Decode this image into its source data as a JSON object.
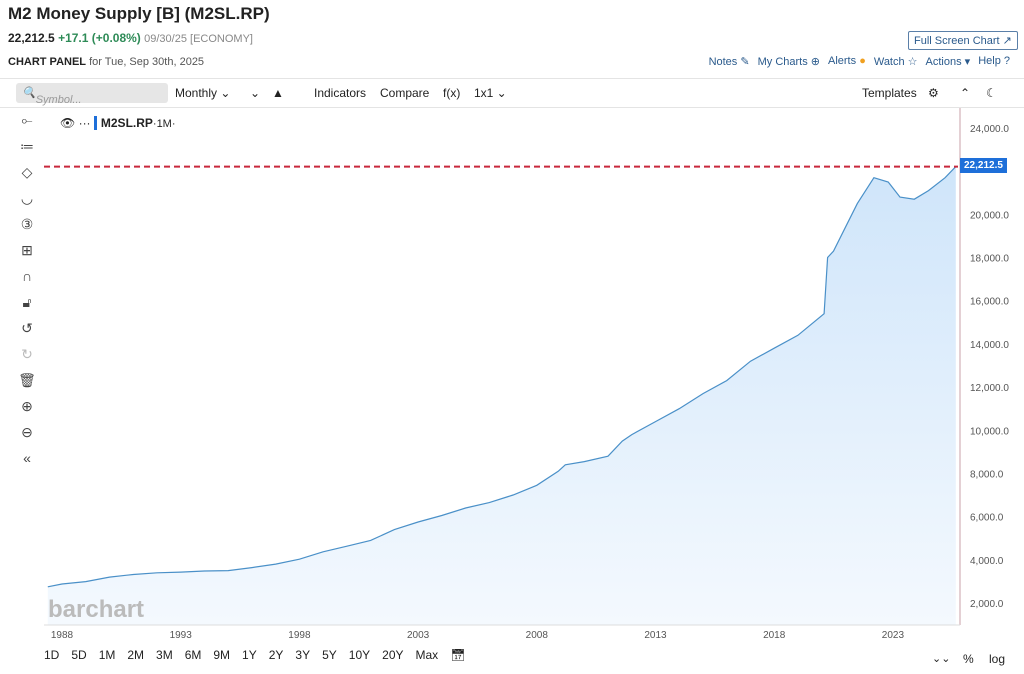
{
  "header": {
    "title": "M2 Money Supply [B] (M2SL.RP)",
    "last": "22,212.5",
    "change": "+17.1 (+0.08%)",
    "date": "09/30/25 [ECONOMY]",
    "panel_label": "CHART PANEL",
    "panel_date": "for Tue, Sep 30th, 2025",
    "fullscreen": "Full Screen Chart ↗"
  },
  "links": [
    "Notes",
    "My Charts",
    "Alerts",
    "Watch",
    "Actions ▾",
    "Help"
  ],
  "toolbar": {
    "search_placeholder": "Symbol...",
    "interval": "Monthly ⌄",
    "chart_type": "⌄",
    "indicators": "Indicators",
    "compare": "Compare",
    "fx": "f(x)",
    "layout": "1x1 ⌄",
    "templates": "Templates"
  },
  "legend": {
    "symbol": "M2SL.RP",
    "period": "·1M·"
  },
  "watermark": "barchart",
  "bottom": {
    "ranges": [
      "1D",
      "5D",
      "1M",
      "2M",
      "3M",
      "6M",
      "9M",
      "1Y",
      "2Y",
      "3Y",
      "5Y",
      "10Y",
      "20Y",
      "Max"
    ],
    "percent": "%",
    "log": "log"
  },
  "chart_data": {
    "type": "area",
    "title": "",
    "xlabel": "",
    "ylabel": "",
    "xticks": [
      "1988",
      "1993",
      "1998",
      "2003",
      "2008",
      "2013",
      "2018",
      "2023"
    ],
    "yticks": [
      "24,000.0",
      "20,000.0",
      "18,000.0",
      "16,000.0",
      "14,000.0",
      "12,000.0",
      "10,000.0",
      "8,000.0",
      "6,000.0",
      "4,000.0",
      "2,000.0"
    ],
    "ylim": [
      2000,
      24000
    ],
    "last_value_label": "22,212.5",
    "last_value": 22212.5,
    "line_color": "#4a90c8",
    "fill_color": "#cfe5fa",
    "last_line_color": "#c8283c",
    "x": [
      1987.4,
      1988,
      1989,
      1990,
      1991,
      1992,
      1993,
      1994,
      1995,
      1996,
      1997,
      1998,
      1999,
      2000,
      2001,
      2002,
      2003,
      2004,
      2005,
      2006,
      2007,
      2008,
      2008.9,
      2009.2,
      2010,
      2011,
      2011.6,
      2012,
      2013,
      2014,
      2015,
      2016,
      2017,
      2018,
      2019,
      2020.1,
      2020.25,
      2020.5,
      2021,
      2021.5,
      2022.2,
      2022.8,
      2023.3,
      2023.9,
      2024.5,
      2025.2,
      2025.65
    ],
    "y": [
      2750,
      2880,
      2990,
      3200,
      3320,
      3400,
      3430,
      3480,
      3500,
      3640,
      3800,
      4030,
      4370,
      4630,
      4900,
      5400,
      5750,
      6050,
      6400,
      6650,
      7000,
      7450,
      8100,
      8400,
      8550,
      8800,
      9500,
      9800,
      10400,
      11000,
      11700,
      12300,
      13200,
      13800,
      14400,
      15400,
      18000,
      18300,
      19400,
      20500,
      21700,
      21500,
      20800,
      20700,
      21100,
      21700,
      22212.5
    ]
  }
}
